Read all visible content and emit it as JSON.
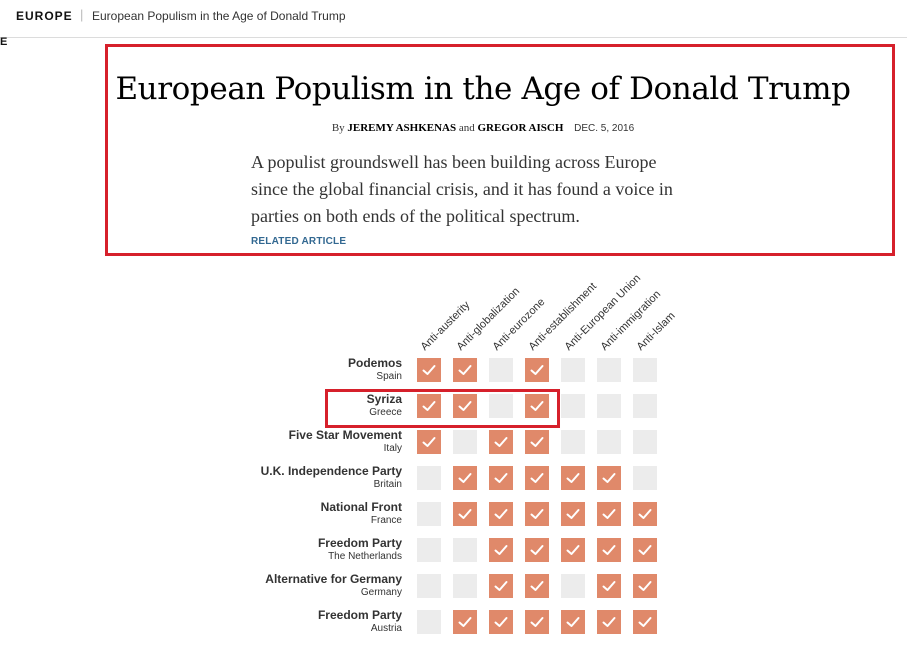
{
  "topbar": {
    "section": "EUROPE",
    "separator": "|",
    "title": "European Populism in the Age of Donald Trump"
  },
  "edge_glyph": "E",
  "article": {
    "headline": "European Populism in the Age of Donald Trump",
    "byline_prefix": "By",
    "author1": "JEREMY ASHKENAS",
    "byline_and": "and",
    "author2": "GREGOR AISCH",
    "date": "DEC. 5, 2016",
    "summary_lines": [
      "A populist groundswell has been building across Europe",
      "since the global financial crisis, and it has found a voice in",
      "parties on both ends of the political spectrum."
    ],
    "related_label": "RELATED ARTICLE"
  },
  "colors": {
    "highlight": "#d6202b",
    "check_on": "#e0896a",
    "check_off": "#ececec",
    "related_link": "#326891"
  },
  "grid": {
    "columns": [
      "Anti-austerity",
      "Anti-globalization",
      "Anti-eurozone",
      "Anti-establishment",
      "Anti-European Union",
      "Anti-immigration",
      "Anti-Islam"
    ],
    "rows": [
      {
        "party": "Podemos",
        "country": "Spain",
        "checks": [
          true,
          true,
          false,
          true,
          false,
          false,
          false
        ]
      },
      {
        "party": "Syriza",
        "country": "Greece",
        "checks": [
          true,
          true,
          false,
          true,
          false,
          false,
          false
        ]
      },
      {
        "party": "Five Star Movement",
        "country": "Italy",
        "checks": [
          true,
          false,
          true,
          true,
          false,
          false,
          false
        ]
      },
      {
        "party": "U.K. Independence Party",
        "country": "Britain",
        "checks": [
          false,
          true,
          true,
          true,
          true,
          true,
          false
        ]
      },
      {
        "party": "National Front",
        "country": "France",
        "checks": [
          false,
          true,
          true,
          true,
          true,
          true,
          true
        ]
      },
      {
        "party": "Freedom Party",
        "country": "The Netherlands",
        "checks": [
          false,
          false,
          true,
          true,
          true,
          true,
          true
        ]
      },
      {
        "party": "Alternative for Germany",
        "country": "Germany",
        "checks": [
          false,
          false,
          true,
          true,
          false,
          true,
          true
        ]
      },
      {
        "party": "Freedom Party",
        "country": "Austria",
        "checks": [
          false,
          true,
          true,
          true,
          true,
          true,
          true
        ]
      }
    ]
  }
}
